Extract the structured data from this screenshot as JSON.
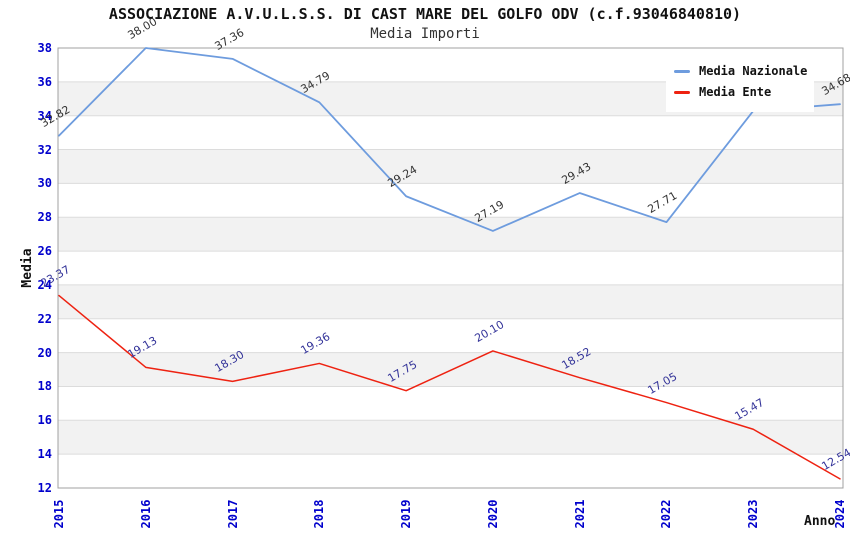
{
  "title": "ASSOCIAZIONE A.V.U.L.S.S. DI CAST MARE DEL GOLFO ODV (c.f.93046840810)",
  "subtitle": "Media Importi",
  "axes": {
    "y_title": "Media",
    "x_title": "Anno",
    "y_ticks": [
      38,
      36,
      34,
      32,
      30,
      28,
      26,
      24,
      22,
      20,
      18,
      16,
      14,
      12
    ],
    "tick_color": "#0000CC"
  },
  "legend": {
    "items": [
      {
        "label": "Media Nazionale",
        "color": "#6E9CDE"
      },
      {
        "label": "Media Ente",
        "color": "#EE2211"
      }
    ]
  },
  "chart_data": {
    "type": "line",
    "title": "ASSOCIAZIONE A.V.U.L.S.S. DI CAST MARE DEL GOLFO ODV (c.f.93046840810)",
    "subtitle": "Media Importi",
    "xlabel": "Anno",
    "ylabel": "Media",
    "ylim": [
      12,
      38
    ],
    "y_step": 2,
    "grid": "alternating-bands",
    "legend_position": "top-right",
    "x": [
      "2015",
      "2016",
      "2017",
      "2018",
      "2019",
      "2020",
      "2021",
      "2022",
      "2023",
      "2024"
    ],
    "series": [
      {
        "name": "Media Nazionale",
        "color": "#6E9CDE",
        "label_color": "#333333",
        "line_width": 1.8,
        "values": [
          32.82,
          38.0,
          37.36,
          34.79,
          29.24,
          27.19,
          29.43,
          27.71,
          34.28,
          34.68
        ],
        "labels": [
          "32.82",
          "38.00",
          "37.36",
          "34.79",
          "29.24",
          "27.19",
          "29.43",
          "27.71",
          "34.28",
          "34.68"
        ],
        "note_2023": "label covered by legend box in source image, value estimated from pixels"
      },
      {
        "name": "Media Ente",
        "color": "#EE2211",
        "label_color": "#333399",
        "line_width": 1.5,
        "values": [
          23.37,
          19.13,
          18.3,
          19.36,
          17.75,
          20.1,
          18.52,
          17.05,
          15.47,
          12.54
        ],
        "labels": [
          "23.37",
          "19.13",
          "18.30",
          "19.36",
          "17.75",
          "20.10",
          "18.52",
          "17.05",
          "15.47",
          "12.54"
        ]
      }
    ],
    "colors": {
      "band_gray": "#F2F2F2",
      "gridline": "#DCDCDC",
      "plot_border": "#A0A0A0",
      "axis_tick_label": "#0000CC"
    }
  }
}
